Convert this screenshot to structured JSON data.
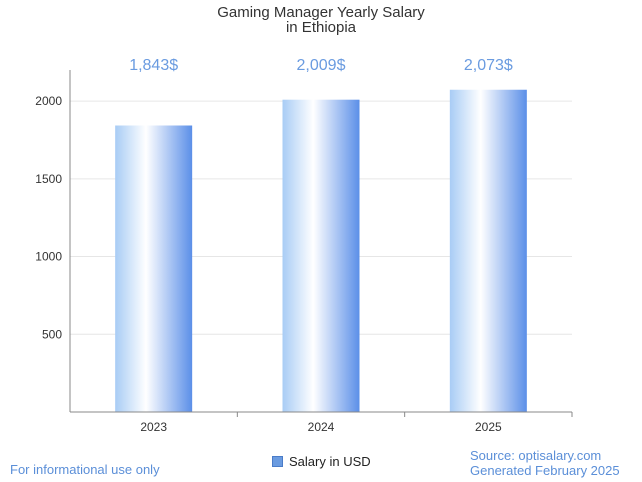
{
  "chart_data": {
    "type": "bar",
    "title": "Gaming Manager Yearly Salary",
    "subtitle": "in Ethiopia",
    "categories": [
      "2023",
      "2024",
      "2025"
    ],
    "series": [
      {
        "name": "Salary in USD",
        "values": [
          1843,
          2009,
          2073
        ],
        "data_labels": [
          "1,843$",
          "2,009$",
          "2,073$"
        ]
      }
    ],
    "y_ticks": [
      "500",
      "1000",
      "1500",
      "2000"
    ],
    "ylim": [
      0,
      2200
    ],
    "grid": true,
    "legend": "bottom-center",
    "colors": {
      "bar_light": "#ffffff",
      "bar_mid": "#a8ccf5",
      "bar_dark": "#5b8fe8",
      "label": "#6a9be0",
      "grid": "#e6e6e6",
      "axis": "#888888"
    }
  },
  "footer": {
    "disclaimer": "For informational use only",
    "source": "Source: optisalary.com",
    "generated": "Generated February 2025"
  }
}
